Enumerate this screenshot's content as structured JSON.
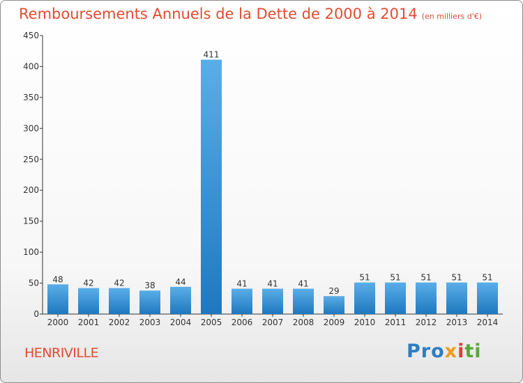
{
  "header": {
    "title": "Remboursements Annuels de la Dette de 2000 à 2014",
    "unit": "(en milliers d'€)"
  },
  "footer": {
    "town": "HENRIVILLE",
    "logo": [
      "Pro",
      "x",
      "i",
      "ti"
    ]
  },
  "colors": {
    "title": "#e24b2f",
    "bar_light": "#5aaee8",
    "bar_dark": "#1f78bf",
    "axis": "#333333"
  },
  "chart_data": {
    "type": "bar",
    "title": "Remboursements Annuels de la Dette de 2000 à 2014",
    "xlabel": "",
    "ylabel": "",
    "categories": [
      "2000",
      "2001",
      "2002",
      "2003",
      "2004",
      "2005",
      "2006",
      "2007",
      "2008",
      "2009",
      "2010",
      "2011",
      "2012",
      "2013",
      "2014"
    ],
    "values": [
      48,
      42,
      42,
      38,
      44,
      411,
      41,
      41,
      41,
      29,
      51,
      51,
      51,
      51,
      51
    ],
    "ylim": [
      0,
      450
    ],
    "yticks": [
      0,
      50,
      100,
      150,
      200,
      250,
      300,
      350,
      400,
      450
    ],
    "grid": false,
    "data_labels": true
  }
}
